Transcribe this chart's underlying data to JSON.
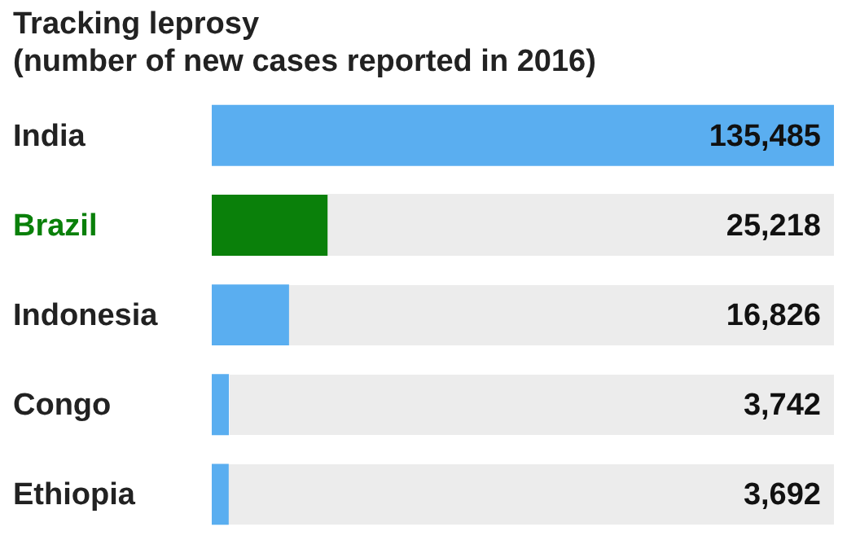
{
  "chart_data": {
    "type": "bar",
    "orientation": "horizontal",
    "title": "Tracking leprosy",
    "subtitle": "(number of new cases reported in 2016)",
    "categories": [
      "India",
      "Brazil",
      "Indonesia",
      "Congo",
      "Ethiopia"
    ],
    "values": [
      135485,
      25218,
      16826,
      3742,
      3692
    ],
    "colors": [
      "#5aaef0",
      "#0a800a",
      "#5aaef0",
      "#5aaef0",
      "#5aaef0"
    ],
    "value_labels": [
      "135,485",
      "25,218",
      "16,826",
      "3,742",
      "3,692"
    ],
    "tick_labels": "y",
    "legend": false
  }
}
